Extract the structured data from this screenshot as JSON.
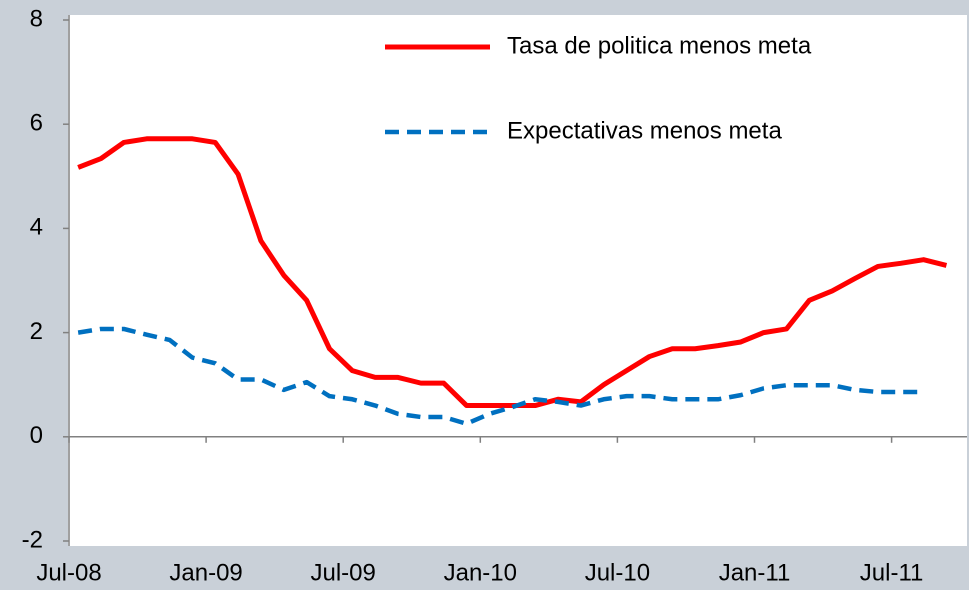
{
  "chart_data": {
    "type": "line",
    "categories": [
      "Jul-08",
      null,
      null,
      null,
      null,
      null,
      "Jan-09",
      null,
      null,
      null,
      null,
      null,
      "Jul-09",
      null,
      null,
      null,
      null,
      null,
      "Jan-10",
      null,
      null,
      null,
      null,
      null,
      "Jul-10",
      null,
      null,
      null,
      null,
      null,
      "Jan-11",
      null,
      null,
      null,
      null,
      null,
      "Jul-11",
      null,
      null
    ],
    "series": [
      {
        "name": "Tasa de politica menos meta",
        "color": "#ff0000",
        "dash": false,
        "values": [
          5.17,
          5.34,
          5.65,
          5.72,
          5.72,
          5.72,
          5.65,
          5.04,
          3.76,
          3.1,
          2.62,
          1.69,
          1.27,
          1.14,
          1.14,
          1.03,
          1.03,
          0.6,
          0.6,
          0.6,
          0.6,
          0.72,
          0.67,
          1.0,
          1.27,
          1.54,
          1.69,
          1.69,
          1.75,
          1.82,
          2.0,
          2.07,
          2.62,
          2.8,
          3.04,
          3.27,
          3.33,
          3.4,
          3.29
        ]
      },
      {
        "name": "Expectativas menos meta",
        "color": "#0070c0",
        "dash": true,
        "values": [
          2.0,
          2.07,
          2.07,
          1.96,
          1.86,
          1.52,
          1.41,
          1.1,
          1.1,
          0.9,
          1.05,
          0.78,
          0.72,
          0.6,
          0.44,
          0.38,
          0.38,
          0.25,
          0.44,
          0.57,
          0.72,
          0.67,
          0.6,
          0.72,
          0.78,
          0.78,
          0.72,
          0.72,
          0.72,
          0.8,
          0.93,
          0.99,
          0.99,
          0.99,
          0.9,
          0.86,
          0.86,
          0.86,
          null
        ]
      }
    ],
    "ylim": [
      -2,
      8
    ],
    "yticks": [
      -2,
      0,
      2,
      4,
      6,
      8
    ],
    "grid": false,
    "legend": "top-right"
  }
}
